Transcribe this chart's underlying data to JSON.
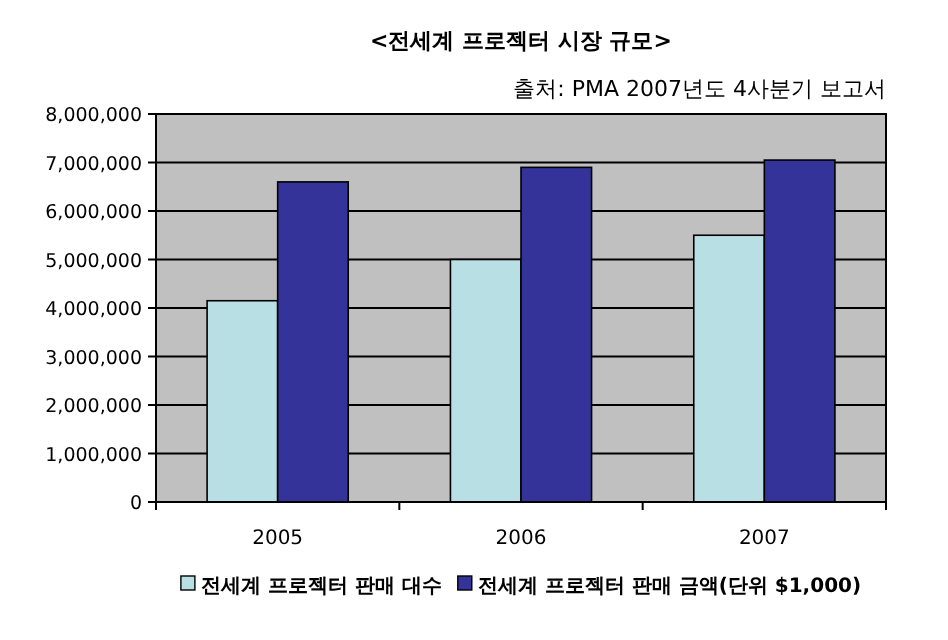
{
  "chart_data": {
    "type": "bar",
    "title": "<전세계 프로젝터 시장 규모>",
    "annotations": [
      "출처: PMA 2007년도 4사분기 보고서"
    ],
    "categories": [
      "2005",
      "2006",
      "2007"
    ],
    "series": [
      {
        "name": "전세계 프로젝터 판매 대수",
        "color": "#b8e0e4",
        "values": [
          4150000,
          5000000,
          5500000
        ]
      },
      {
        "name": "전세계 프로젝터 판매 금액(단위 $1,000)",
        "color": "#333399",
        "values": [
          6600000,
          6900000,
          7050000
        ]
      }
    ],
    "ylim": [
      0,
      8000000
    ],
    "yticks": [
      {
        "value": 0,
        "label": "0"
      },
      {
        "value": 1000000,
        "label": "1,000,000"
      },
      {
        "value": 2000000,
        "label": "2,000,000"
      },
      {
        "value": 3000000,
        "label": "3,000,000"
      },
      {
        "value": 4000000,
        "label": "4,000,000"
      },
      {
        "value": 5000000,
        "label": "5,000,000"
      },
      {
        "value": 6000000,
        "label": "6,000,000"
      },
      {
        "value": 7000000,
        "label": "7,000,000"
      },
      {
        "value": 8000000,
        "label": "8,000,000"
      }
    ],
    "grid": "y",
    "legend": "bottom"
  }
}
